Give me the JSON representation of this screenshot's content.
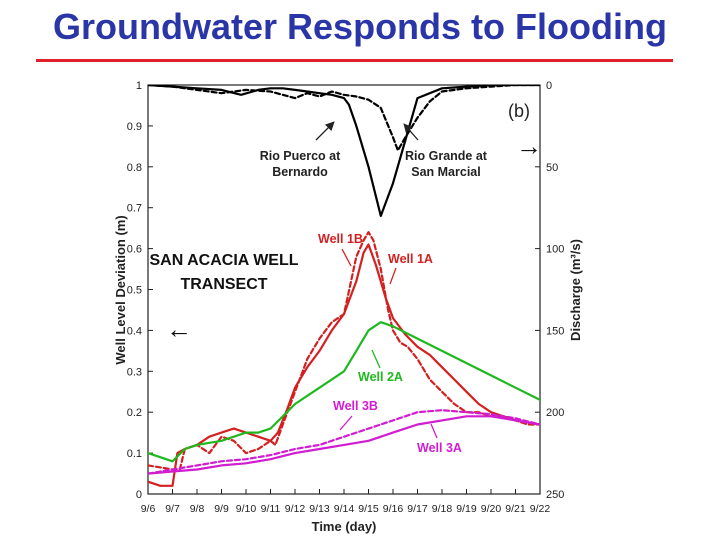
{
  "slide": {
    "title": "Groundwater Responds to Flooding"
  },
  "chart_data": {
    "type": "line",
    "panel_label": "(b)",
    "transect_label": [
      "SAN ACACIA WELL",
      "TRANSECT"
    ],
    "xlabel": "Time (day)",
    "ylabel_left": "Well Level Deviation (m)",
    "ylabel_right": "Discharge (m³/s)",
    "x_ticks": [
      "9/6",
      "9/7",
      "9/8",
      "9/9",
      "9/10",
      "9/11",
      "9/12",
      "9/13",
      "9/14",
      "9/15",
      "9/16",
      "9/17",
      "9/18",
      "9/19",
      "9/20",
      "9/21",
      "9/22"
    ],
    "y_left": {
      "range": [
        0,
        1
      ],
      "ticks": [
        "0",
        "0.1",
        "0.2",
        "0.3",
        "0.4",
        "0.5",
        "0.6",
        "0.7",
        "0.8",
        "0.9",
        "1"
      ]
    },
    "y_right": {
      "range": [
        0,
        250
      ],
      "inverted": true,
      "ticks": [
        "0",
        "50",
        "100",
        "150",
        "200",
        "250"
      ]
    },
    "well_series": [
      {
        "name": "Well 1B",
        "axis": "left",
        "color": "#d42020",
        "dash": "5,3",
        "x": [
          0,
          0.5,
          1,
          1.3,
          1.5,
          2,
          2.5,
          3,
          3.5,
          4,
          4.5,
          5,
          5.2,
          5.5,
          6,
          6.5,
          7,
          7.5,
          8,
          8.5,
          8.8,
          9,
          9.2,
          9.5,
          9.8,
          10,
          10.3,
          10.6,
          11,
          11.5,
          12,
          12.5,
          13,
          13.5,
          14,
          14.5,
          15,
          15.5,
          16
        ],
        "y": [
          0.07,
          0.065,
          0.06,
          0.06,
          0.11,
          0.12,
          0.1,
          0.14,
          0.13,
          0.1,
          0.11,
          0.13,
          0.12,
          0.17,
          0.25,
          0.33,
          0.38,
          0.42,
          0.44,
          0.58,
          0.62,
          0.64,
          0.62,
          0.55,
          0.45,
          0.4,
          0.37,
          0.36,
          0.33,
          0.28,
          0.25,
          0.22,
          0.2,
          0.2,
          0.19,
          0.19,
          0.18,
          0.17,
          0.17
        ]
      },
      {
        "name": "Well 1A",
        "axis": "left",
        "color": "#d42020",
        "dash": "",
        "x": [
          0,
          0.5,
          1,
          1.2,
          1.5,
          2,
          2.5,
          3,
          3.5,
          4,
          4.5,
          5,
          5.3,
          5.7,
          6,
          6.5,
          7,
          7.5,
          8,
          8.5,
          8.8,
          9,
          9.3,
          9.7,
          10,
          10.5,
          11,
          11.5,
          12,
          12.5,
          13,
          13.5,
          14,
          14.5,
          15,
          15.5,
          16
        ],
        "y": [
          0.03,
          0.02,
          0.02,
          0.1,
          0.11,
          0.12,
          0.14,
          0.15,
          0.16,
          0.15,
          0.14,
          0.13,
          0.15,
          0.21,
          0.26,
          0.31,
          0.35,
          0.4,
          0.44,
          0.52,
          0.59,
          0.61,
          0.56,
          0.48,
          0.43,
          0.39,
          0.36,
          0.34,
          0.31,
          0.28,
          0.25,
          0.22,
          0.2,
          0.19,
          0.18,
          0.175,
          0.17
        ]
      },
      {
        "name": "Well 2A",
        "axis": "left",
        "color": "#1fb81f",
        "dash": "",
        "x": [
          0,
          1,
          1.5,
          2,
          3,
          3.5,
          4,
          4.5,
          5,
          5.5,
          6,
          7,
          8,
          8.5,
          9,
          9.5,
          10,
          11,
          12,
          13,
          14,
          15,
          16
        ],
        "y": [
          0.1,
          0.08,
          0.11,
          0.12,
          0.13,
          0.14,
          0.15,
          0.15,
          0.16,
          0.19,
          0.22,
          0.26,
          0.3,
          0.35,
          0.4,
          0.42,
          0.41,
          0.38,
          0.35,
          0.32,
          0.29,
          0.26,
          0.23
        ]
      },
      {
        "name": "Well 3B",
        "axis": "left",
        "color": "#d21cd2",
        "dash": "5,3",
        "x": [
          0,
          1,
          2,
          3,
          4,
          5,
          6,
          7,
          8,
          9,
          10,
          11,
          12,
          13,
          14,
          15,
          16
        ],
        "y": [
          0.05,
          0.06,
          0.07,
          0.08,
          0.085,
          0.095,
          0.11,
          0.12,
          0.14,
          0.16,
          0.18,
          0.2,
          0.205,
          0.2,
          0.195,
          0.185,
          0.17
        ]
      },
      {
        "name": "Well 3A",
        "axis": "left",
        "color": "#d21cd2",
        "dash": "",
        "x": [
          0,
          1,
          2,
          3,
          4,
          5,
          6,
          7,
          8,
          9,
          10,
          11,
          12,
          13,
          14,
          15,
          16
        ],
        "y": [
          0.05,
          0.055,
          0.06,
          0.07,
          0.075,
          0.085,
          0.1,
          0.11,
          0.12,
          0.13,
          0.15,
          0.17,
          0.18,
          0.19,
          0.19,
          0.18,
          0.17
        ]
      }
    ],
    "discharge_series": [
      {
        "name": "Rio Puerco at Bernardo",
        "axis": "right",
        "color": "#000000",
        "dash": "",
        "x": [
          0,
          1,
          2,
          3,
          3.8,
          4.5,
          5,
          5.5,
          6,
          6.5,
          7,
          7.5,
          8,
          8.2,
          8.5,
          9,
          9.5,
          10,
          11,
          12,
          13,
          14,
          15,
          16
        ],
        "y": [
          0,
          1,
          2,
          3,
          6,
          3,
          2,
          2,
          3,
          4,
          5,
          6,
          8,
          12,
          25,
          50,
          80,
          60,
          8,
          2,
          1,
          0,
          0,
          0
        ]
      },
      {
        "name": "Rio Grande at San Marcial",
        "axis": "right",
        "color": "#000000",
        "dash": "5,3",
        "x": [
          0,
          1,
          2,
          3,
          4,
          5,
          6,
          6.5,
          7,
          7.5,
          8,
          8.5,
          9,
          9.5,
          10,
          10.2,
          10.5,
          11,
          11.5,
          12,
          13,
          14,
          15,
          16
        ],
        "y": [
          0,
          1,
          3,
          5,
          3,
          4,
          8,
          5,
          7,
          4,
          6,
          7,
          9,
          14,
          32,
          40,
          32,
          20,
          10,
          4,
          2,
          1,
          0,
          0
        ]
      }
    ],
    "annotations": {
      "rio_puerco": [
        "Rio Puerco at",
        "Bernardo"
      ],
      "rio_grande": [
        "Rio Grande at",
        "San Marcial"
      ],
      "well_1b": "Well 1B",
      "well_1a": "Well 1A",
      "well_2a": "Well 2A",
      "well_3b": "Well 3B",
      "well_3a": "Well 3A"
    },
    "arrows": {
      "left_axis_pointer": "←",
      "right_axis_pointer": "→"
    }
  }
}
